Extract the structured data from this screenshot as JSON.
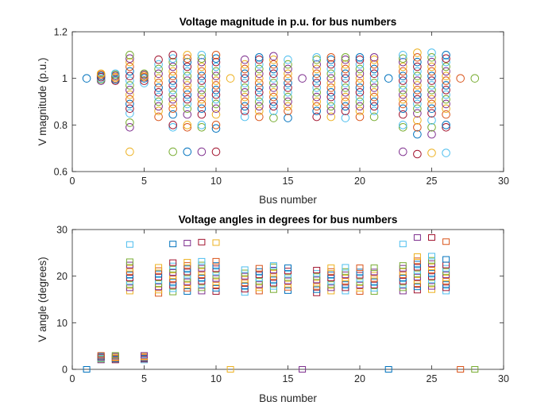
{
  "colors": [
    "#0072BD",
    "#D95319",
    "#EDB120",
    "#7E2F8E",
    "#77AC30",
    "#4DBEEE",
    "#A2142F"
  ],
  "chart_data": [
    {
      "type": "scatter",
      "marker": "circle",
      "title": "Voltage magnitude in p.u. for bus numbers",
      "xlabel": "Bus number",
      "ylabel": "V magnitude (p.u.)",
      "xlim": [
        0,
        30
      ],
      "ylim": [
        0.6,
        1.2
      ],
      "xticks": [
        0,
        5,
        10,
        15,
        20,
        25,
        30
      ],
      "yticks": [
        0.6,
        0.8,
        1.0,
        1.2
      ],
      "xtick_labels": [
        "0",
        "5",
        "10",
        "15",
        "20",
        "25",
        "30"
      ],
      "ytick_labels": [
        "0.6",
        "0.8",
        "1",
        "1.2"
      ],
      "grid": false,
      "points": [
        {
          "x": 1,
          "y": [
            1.0
          ]
        },
        {
          "x": 2,
          "y": [
            0.99,
            0.995,
            1.0,
            1.005,
            1.01,
            1.015,
            1.02
          ]
        },
        {
          "x": 3,
          "y": [
            0.99,
            0.995,
            1.0,
            1.005,
            1.01,
            1.015,
            1.02
          ]
        },
        {
          "x": 4,
          "y": [
            0.685,
            0.79,
            0.81,
            0.85,
            0.87,
            0.89,
            0.91,
            0.93,
            0.95,
            0.97,
            0.99,
            1.01,
            1.03,
            1.05,
            1.07,
            1.085,
            1.1
          ]
        },
        {
          "x": 5,
          "y": [
            0.98,
            0.99,
            1.0,
            1.005,
            1.01,
            1.015,
            1.02
          ]
        },
        {
          "x": 6,
          "y": [
            0.835,
            0.86,
            0.88,
            0.9,
            0.92,
            0.94,
            0.96,
            0.98,
            1.0,
            1.02,
            1.04,
            1.06,
            1.08
          ]
        },
        {
          "x": 7,
          "y": [
            0.685,
            0.79,
            0.8,
            0.845,
            0.87,
            0.89,
            0.91,
            0.93,
            0.95,
            0.97,
            0.99,
            1.01,
            1.03,
            1.05,
            1.07,
            1.085,
            1.1
          ]
        },
        {
          "x": 8,
          "y": [
            0.685,
            0.79,
            0.8,
            0.845,
            0.87,
            0.89,
            0.91,
            0.93,
            0.95,
            0.97,
            0.99,
            1.01,
            1.03,
            1.05,
            1.07,
            1.085,
            1.1
          ]
        },
        {
          "x": 9,
          "y": [
            0.685,
            0.79,
            0.8,
            0.845,
            0.87,
            0.89,
            0.91,
            0.93,
            0.95,
            0.97,
            0.99,
            1.01,
            1.03,
            1.05,
            1.07,
            1.085,
            1.1
          ]
        },
        {
          "x": 10,
          "y": [
            0.685,
            0.785,
            0.8,
            0.845,
            0.87,
            0.89,
            0.91,
            0.93,
            0.95,
            0.97,
            0.99,
            1.01,
            1.03,
            1.05,
            1.07,
            1.085,
            1.1
          ]
        },
        {
          "x": 11,
          "y": [
            1.0
          ]
        },
        {
          "x": 12,
          "y": [
            0.835,
            0.86,
            0.88,
            0.9,
            0.92,
            0.94,
            0.96,
            0.98,
            1.0,
            1.02,
            1.04,
            1.06,
            1.08
          ]
        },
        {
          "x": 13,
          "y": [
            0.835,
            0.86,
            0.88,
            0.9,
            0.92,
            0.94,
            0.96,
            0.98,
            1.0,
            1.02,
            1.04,
            1.06,
            1.08,
            1.09
          ]
        },
        {
          "x": 14,
          "y": [
            0.83,
            0.86,
            0.88,
            0.9,
            0.92,
            0.94,
            0.96,
            0.98,
            1.0,
            1.02,
            1.04,
            1.06,
            1.08,
            1.095
          ]
        },
        {
          "x": 15,
          "y": [
            0.83,
            0.86,
            0.88,
            0.9,
            0.92,
            0.94,
            0.96,
            0.98,
            1.0,
            1.02,
            1.04,
            1.06,
            1.08
          ]
        },
        {
          "x": 16,
          "y": [
            1.0
          ]
        },
        {
          "x": 17,
          "y": [
            0.835,
            0.86,
            0.88,
            0.9,
            0.92,
            0.94,
            0.96,
            0.98,
            1.0,
            1.02,
            1.04,
            1.06,
            1.08,
            1.09
          ]
        },
        {
          "x": 18,
          "y": [
            0.835,
            0.86,
            0.88,
            0.9,
            0.92,
            0.94,
            0.96,
            0.98,
            1.0,
            1.02,
            1.04,
            1.06,
            1.08,
            1.09
          ]
        },
        {
          "x": 19,
          "y": [
            0.83,
            0.86,
            0.88,
            0.9,
            0.92,
            0.94,
            0.96,
            0.98,
            1.0,
            1.02,
            1.04,
            1.06,
            1.08,
            1.09
          ]
        },
        {
          "x": 20,
          "y": [
            0.835,
            0.86,
            0.88,
            0.9,
            0.92,
            0.94,
            0.96,
            0.98,
            1.0,
            1.02,
            1.04,
            1.06,
            1.08,
            1.09
          ]
        },
        {
          "x": 21,
          "y": [
            0.835,
            0.86,
            0.88,
            0.9,
            0.92,
            0.94,
            0.96,
            0.98,
            1.0,
            1.02,
            1.04,
            1.06,
            1.08,
            1.09
          ]
        },
        {
          "x": 22,
          "y": [
            1.0
          ]
        },
        {
          "x": 23,
          "y": [
            0.685,
            0.79,
            0.8,
            0.845,
            0.87,
            0.89,
            0.91,
            0.93,
            0.95,
            0.97,
            0.99,
            1.01,
            1.03,
            1.05,
            1.07,
            1.085,
            1.1
          ]
        },
        {
          "x": 24,
          "y": [
            0.675,
            0.76,
            0.79,
            0.82,
            0.85,
            0.87,
            0.89,
            0.91,
            0.93,
            0.95,
            0.97,
            0.99,
            1.01,
            1.03,
            1.05,
            1.07,
            1.09,
            1.11
          ]
        },
        {
          "x": 25,
          "y": [
            0.68,
            0.76,
            0.79,
            0.82,
            0.85,
            0.87,
            0.89,
            0.91,
            0.93,
            0.95,
            0.97,
            0.99,
            1.01,
            1.03,
            1.05,
            1.07,
            1.09,
            1.11
          ]
        },
        {
          "x": 26,
          "y": [
            0.68,
            0.79,
            0.8,
            0.845,
            0.87,
            0.89,
            0.91,
            0.93,
            0.95,
            0.97,
            0.99,
            1.01,
            1.03,
            1.05,
            1.07,
            1.085,
            1.1
          ]
        },
        {
          "x": 27,
          "y": [
            1.0
          ]
        },
        {
          "x": 28,
          "y": [
            1.0
          ]
        }
      ]
    },
    {
      "type": "scatter",
      "marker": "square",
      "title": "Voltage angles in degrees for bus numbers",
      "xlabel": "Bus number",
      "ylabel": "V angle (degrees)",
      "xlim": [
        0,
        30
      ],
      "ylim": [
        0,
        30
      ],
      "xticks": [
        0,
        5,
        10,
        15,
        20,
        25,
        30
      ],
      "yticks": [
        0,
        10,
        20,
        30
      ],
      "xtick_labels": [
        "0",
        "5",
        "10",
        "15",
        "20",
        "25",
        "30"
      ],
      "ytick_labels": [
        "0",
        "10",
        "20",
        "30"
      ],
      "grid": false,
      "points": [
        {
          "x": 1,
          "y": [
            0.0
          ]
        },
        {
          "x": 2,
          "y": [
            2.0,
            2.2,
            2.4,
            2.6,
            2.8,
            3.0
          ]
        },
        {
          "x": 3,
          "y": [
            2.0,
            2.2,
            2.4,
            2.6,
            2.8,
            3.0
          ]
        },
        {
          "x": 4,
          "y": [
            16.8,
            17.5,
            18.2,
            18.9,
            19.6,
            20.3,
            21.0,
            21.7,
            22.4,
            23.1,
            26.8
          ]
        },
        {
          "x": 5,
          "y": [
            2.0,
            2.2,
            2.4,
            2.6,
            2.8,
            3.0
          ]
        },
        {
          "x": 6,
          "y": [
            16.3,
            17.0,
            17.7,
            18.4,
            19.1,
            19.8,
            20.5,
            21.2,
            21.9
          ]
        },
        {
          "x": 7,
          "y": [
            16.6,
            17.3,
            18.0,
            18.7,
            19.4,
            20.1,
            20.8,
            21.5,
            22.2,
            22.9,
            26.9
          ]
        },
        {
          "x": 8,
          "y": [
            16.7,
            17.4,
            18.1,
            18.8,
            19.5,
            20.2,
            20.9,
            21.6,
            22.3,
            23.0,
            27.1
          ]
        },
        {
          "x": 9,
          "y": [
            16.8,
            17.5,
            18.2,
            18.9,
            19.6,
            20.3,
            21.0,
            21.7,
            22.4,
            23.2,
            27.3
          ]
        },
        {
          "x": 10,
          "y": [
            16.7,
            17.4,
            18.1,
            18.8,
            19.5,
            20.2,
            20.9,
            21.6,
            22.3,
            23.2,
            27.2
          ]
        },
        {
          "x": 11,
          "y": [
            0.0
          ]
        },
        {
          "x": 12,
          "y": [
            16.5,
            17.2,
            17.9,
            18.6,
            19.3,
            20.0,
            20.7,
            21.4
          ]
        },
        {
          "x": 13,
          "y": [
            16.8,
            17.5,
            18.2,
            18.9,
            19.6,
            20.3,
            21.0,
            21.7
          ]
        },
        {
          "x": 14,
          "y": [
            17.1,
            17.8,
            18.5,
            19.2,
            19.9,
            20.6,
            21.3,
            22.0,
            22.3
          ]
        },
        {
          "x": 15,
          "y": [
            16.9,
            17.6,
            18.3,
            19.0,
            19.7,
            20.4,
            21.1,
            21.8
          ]
        },
        {
          "x": 16,
          "y": [
            0.0
          ]
        },
        {
          "x": 17,
          "y": [
            16.4,
            17.1,
            17.8,
            18.5,
            19.2,
            19.9,
            20.6,
            21.3
          ]
        },
        {
          "x": 18,
          "y": [
            16.8,
            17.5,
            18.2,
            18.9,
            19.6,
            20.3,
            21.0,
            21.8
          ]
        },
        {
          "x": 19,
          "y": [
            16.8,
            17.5,
            18.2,
            18.9,
            19.6,
            20.3,
            21.0,
            21.9
          ]
        },
        {
          "x": 20,
          "y": [
            16.7,
            17.4,
            18.1,
            18.8,
            19.5,
            20.2,
            20.9,
            21.8
          ]
        },
        {
          "x": 21,
          "y": [
            16.7,
            17.4,
            18.1,
            18.8,
            19.5,
            20.2,
            20.9,
            21.8
          ]
        },
        {
          "x": 22,
          "y": [
            0.0
          ]
        },
        {
          "x": 23,
          "y": [
            16.8,
            17.5,
            18.2,
            18.9,
            19.6,
            20.3,
            21.0,
            21.7,
            22.3,
            26.9
          ]
        },
        {
          "x": 24,
          "y": [
            17.0,
            17.7,
            18.4,
            19.1,
            19.8,
            20.5,
            21.2,
            21.9,
            22.6,
            23.3,
            24.2,
            28.3
          ]
        },
        {
          "x": 25,
          "y": [
            17.1,
            17.8,
            18.5,
            19.2,
            19.9,
            20.6,
            21.3,
            22.0,
            22.7,
            23.4,
            24.3,
            28.3
          ]
        },
        {
          "x": 26,
          "y": [
            16.8,
            17.5,
            18.2,
            18.9,
            19.6,
            20.3,
            21.0,
            21.7,
            22.4,
            23.6,
            27.4
          ]
        },
        {
          "x": 27,
          "y": [
            0.0
          ]
        },
        {
          "x": 28,
          "y": [
            0.0
          ]
        }
      ]
    }
  ]
}
